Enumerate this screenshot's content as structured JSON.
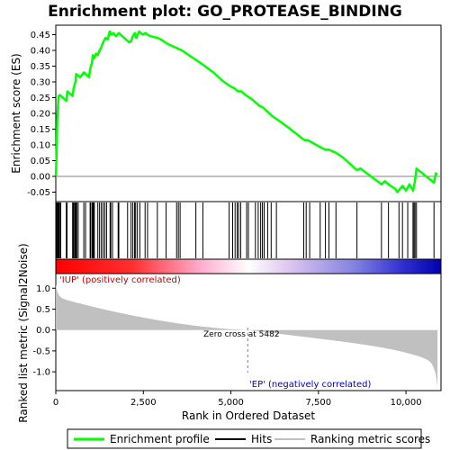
{
  "chart_data": {
    "type": "line",
    "title": "Enrichment plot: GO_PROTEASE_BINDING",
    "xlabel": "Rank in Ordered Dataset",
    "ylabel_top": "Enrichment score (ES)",
    "ylabel_bottom": "Ranked list metric (Signal2Noise)",
    "xlim": [
      0,
      11000
    ],
    "ylim_top": [
      -0.08,
      0.48
    ],
    "ylim_bottom": [
      -1.45,
      1.35
    ],
    "x_ticks": [
      0,
      2500,
      5000,
      7500,
      10000
    ],
    "x_tick_labels": [
      "0",
      "2,500",
      "5,000",
      "7,500",
      "10,000"
    ],
    "y_ticks_top": [
      -0.05,
      0.0,
      0.05,
      0.1,
      0.15,
      0.2,
      0.25,
      0.3,
      0.35,
      0.4,
      0.45
    ],
    "y_tick_labels_top": [
      "-0.05",
      "0.00",
      "0.05",
      "0.10",
      "0.15",
      "0.20",
      "0.25",
      "0.30",
      "0.35",
      "0.40",
      "0.45"
    ],
    "y_ticks_bottom": [
      -1.0,
      -0.5,
      0.0,
      0.5,
      1.0
    ],
    "y_tick_labels_bottom": [
      "-1.0",
      "-0.5",
      "0.0",
      "0.5",
      "1.0"
    ],
    "n_genes": 10900,
    "zero_cross": 5482,
    "zero_cross_label": "Zero cross at 5482",
    "pos_label": "'IUP' (positively correlated)",
    "neg_label": "'EP' (negatively correlated)",
    "es_curve": {
      "x": [
        0,
        20,
        40,
        80,
        120,
        300,
        330,
        480,
        510,
        560,
        580,
        640,
        700,
        800,
        850,
        950,
        980,
        1030,
        1060,
        1100,
        1150,
        1200,
        1250,
        1300,
        1350,
        1420,
        1480,
        1540,
        1580,
        1640,
        1720,
        1800,
        1950,
        2100,
        2150,
        2200,
        2260,
        2300,
        2380,
        2480,
        2560,
        2620,
        2700,
        2900,
        3000,
        3200,
        3500,
        3600,
        4000,
        4200,
        4500,
        4800,
        5000,
        5100,
        5200,
        5300,
        5400,
        5600,
        5700,
        5800,
        5900,
        6000,
        6100,
        6200,
        6400,
        6700,
        7100,
        7200,
        7600,
        7700,
        7800,
        7900,
        8000,
        8200,
        8600,
        8700,
        9300,
        9400,
        9500,
        9700,
        9750,
        9900,
        10000,
        10100,
        10200,
        10250,
        10300,
        10800,
        10850,
        10900
      ],
      "es": [
        0.0,
        0.06,
        0.18,
        0.255,
        0.258,
        0.24,
        0.27,
        0.255,
        0.28,
        0.3,
        0.325,
        0.32,
        0.315,
        0.33,
        0.325,
        0.315,
        0.34,
        0.36,
        0.385,
        0.375,
        0.39,
        0.385,
        0.4,
        0.41,
        0.425,
        0.44,
        0.435,
        0.46,
        0.45,
        0.455,
        0.445,
        0.455,
        0.44,
        0.425,
        0.43,
        0.445,
        0.455,
        0.44,
        0.46,
        0.45,
        0.455,
        0.45,
        0.445,
        0.44,
        0.435,
        0.42,
        0.405,
        0.4,
        0.37,
        0.355,
        0.33,
        0.3,
        0.285,
        0.28,
        0.27,
        0.27,
        0.26,
        0.245,
        0.235,
        0.225,
        0.22,
        0.21,
        0.2,
        0.19,
        0.175,
        0.15,
        0.115,
        0.115,
        0.09,
        0.085,
        0.085,
        0.08,
        0.075,
        0.06,
        0.02,
        0.025,
        -0.025,
        -0.015,
        -0.025,
        -0.04,
        -0.05,
        -0.03,
        -0.045,
        -0.025,
        -0.045,
        -0.02,
        0.025,
        -0.02,
        0.01,
        0.005
      ]
    },
    "hits": [
      15,
      35,
      55,
      70,
      90,
      110,
      140,
      300,
      320,
      480,
      500,
      520,
      550,
      560,
      575,
      600,
      640,
      800,
      850,
      980,
      1000,
      1040,
      1060,
      1080,
      1100,
      1200,
      1250,
      1300,
      1350,
      1400,
      1450,
      1550,
      1570,
      1620,
      1780,
      1800,
      2050,
      2150,
      2200,
      2250,
      2280,
      2330,
      2400,
      2550,
      2620,
      2900,
      3150,
      3450,
      3500,
      3550,
      4000,
      4200,
      4950,
      5050,
      5120,
      5180,
      5220,
      5280,
      5450,
      5500,
      5700,
      5780,
      5850,
      5900,
      5950,
      6050,
      6150,
      6300,
      7080,
      7150,
      7250,
      7550,
      7700,
      7800,
      8000,
      8600,
      9300,
      9500,
      9800,
      9900,
      10050,
      10200,
      10230,
      10260,
      10300,
      10800
    ]
  },
  "legend": {
    "items": [
      {
        "name": "Enrichment profile",
        "color": "#00ff00"
      },
      {
        "name": "Hits",
        "color": "#000000"
      },
      {
        "name": "Ranking metric scores",
        "color": "#c0c0c0"
      }
    ]
  },
  "colors": {
    "es_line": "#00ff00",
    "metric_fill": "#c0c0c0",
    "hit_line": "#000000",
    "pos_text": "#cc0000",
    "neg_text": "#0000cc"
  }
}
